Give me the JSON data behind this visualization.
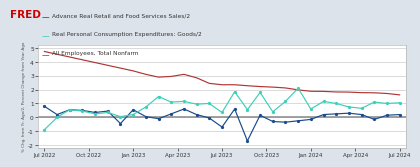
{
  "legend": [
    "Advance Real Retail and Food Services Sales/2",
    "Real Personal Consumption Expenditures: Goods/2",
    "All Employees, Total Nonfarm"
  ],
  "line_colors": [
    "#1a4b8c",
    "#3ecfb8",
    "#b03535"
  ],
  "background_color": "#dce3ea",
  "plot_bg": "#ffffff",
  "xtick_labels": [
    "Jul 2022",
    "Oct 2022",
    "Jan 2023",
    "Apr 2023",
    "Jul 2023",
    "Oct 2023",
    "Jan 2024",
    "Apr 2024",
    "Jul 2024"
  ],
  "ylim": [
    -2.2,
    5.2
  ],
  "yticks": [
    -2,
    -1,
    0,
    1,
    2,
    3,
    4,
    5
  ],
  "hline_color": "#888888",
  "blue_y": [
    0.8,
    0.2,
    0.55,
    0.5,
    0.35,
    0.45,
    -0.45,
    0.55,
    0.05,
    -0.1,
    0.25,
    0.6,
    0.2,
    -0.05,
    -0.7,
    0.6,
    -1.7,
    0.15,
    -0.3,
    -0.35,
    -0.25,
    -0.15,
    0.2,
    0.25,
    0.3,
    0.2,
    -0.15,
    0.15,
    0.2
  ],
  "teal_y": [
    -0.9,
    0.0,
    0.55,
    0.45,
    0.25,
    0.35,
    0.05,
    0.2,
    0.75,
    1.5,
    1.1,
    1.15,
    0.95,
    1.0,
    0.35,
    1.85,
    0.55,
    1.8,
    0.4,
    1.15,
    2.1,
    0.6,
    1.15,
    1.0,
    0.75,
    0.65,
    1.1,
    1.0,
    1.05
  ],
  "red_y": [
    4.75,
    4.55,
    4.35,
    4.15,
    3.95,
    3.75,
    3.55,
    3.35,
    3.1,
    2.9,
    2.95,
    3.1,
    2.85,
    2.45,
    2.35,
    2.35,
    2.28,
    2.22,
    2.18,
    2.12,
    1.98,
    1.88,
    1.87,
    1.83,
    1.82,
    1.78,
    1.77,
    1.72,
    1.62
  ]
}
